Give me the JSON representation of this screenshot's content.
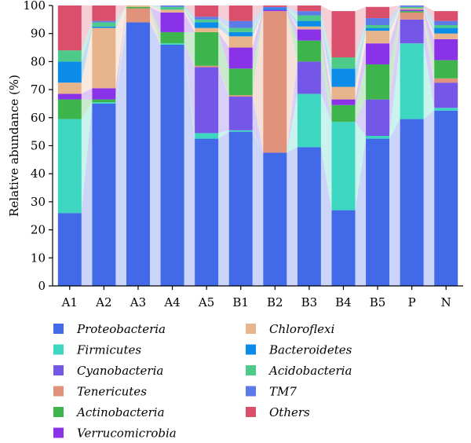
{
  "chart_data": {
    "type": "bar",
    "stacked": true,
    "ylabel": "Relative abundance (%)",
    "xlabel": "",
    "ylim": [
      0,
      100
    ],
    "yticks": [
      0,
      10,
      20,
      30,
      40,
      50,
      60,
      70,
      80,
      90,
      100
    ],
    "categories": [
      "A1",
      "A2",
      "A3",
      "A4",
      "A5",
      "B1",
      "B2",
      "B3",
      "B4",
      "B5",
      "P",
      "N"
    ],
    "legend_position": "bottom",
    "series": [
      {
        "name": "Proteobacteria",
        "color": "#4169E8",
        "values": [
          26,
          65,
          94,
          86,
          52.5,
          55,
          47.5,
          49.5,
          27,
          52.5,
          59.5,
          62.5
        ]
      },
      {
        "name": "Firmicutes",
        "color": "#3DD6C0",
        "values": [
          33.5,
          0.5,
          0,
          0.5,
          2,
          0.5,
          0,
          19,
          31.5,
          1,
          27,
          1
        ]
      },
      {
        "name": "Cyanobacteria",
        "color": "#7557E8",
        "values": [
          0,
          0,
          0,
          0,
          23.5,
          12,
          0,
          11.5,
          0,
          13,
          8.5,
          9
        ]
      },
      {
        "name": "Tenericutes",
        "color": "#E0937A",
        "values": [
          0,
          0,
          5,
          0,
          0.5,
          0.5,
          50.5,
          0,
          0,
          0,
          2.5,
          1.5
        ]
      },
      {
        "name": "Actinobacteria",
        "color": "#3DB54C",
        "values": [
          7,
          1,
          0.5,
          4,
          12,
          9.5,
          0,
          7.5,
          6,
          12.5,
          0.5,
          6.5
        ]
      },
      {
        "name": "Verrucomicrobia",
        "color": "#8A32E8",
        "values": [
          2,
          4,
          0,
          7,
          0,
          7.5,
          0.5,
          4,
          2,
          7.5,
          0.5,
          7.5
        ]
      },
      {
        "name": "Chloroflexi",
        "color": "#E8B48C",
        "values": [
          4,
          21.5,
          0.5,
          1,
          1.5,
          4,
          0,
          1,
          4.5,
          4.5,
          0.5,
          2
        ]
      },
      {
        "name": "Bacteroidetes",
        "color": "#0B8CE8",
        "values": [
          7.5,
          0.5,
          0,
          0,
          2,
          1.5,
          0.5,
          2,
          6.5,
          1,
          0,
          2
        ]
      },
      {
        "name": "Acidobacteria",
        "color": "#4DC98A",
        "values": [
          4,
          1.5,
          0,
          1,
          1,
          1.5,
          0,
          2,
          4,
          1,
          0.5,
          1
        ]
      },
      {
        "name": "TM7",
        "color": "#5C7BE8",
        "values": [
          0,
          0.5,
          0,
          0.5,
          1,
          2.5,
          0.5,
          1.5,
          0,
          2.5,
          0.5,
          1.5
        ]
      },
      {
        "name": "Others",
        "color": "#DA4F6C",
        "values": [
          16,
          5.5,
          0,
          0,
          4,
          5.5,
          0.5,
          2,
          16.5,
          4,
          0,
          3.5
        ]
      }
    ]
  }
}
